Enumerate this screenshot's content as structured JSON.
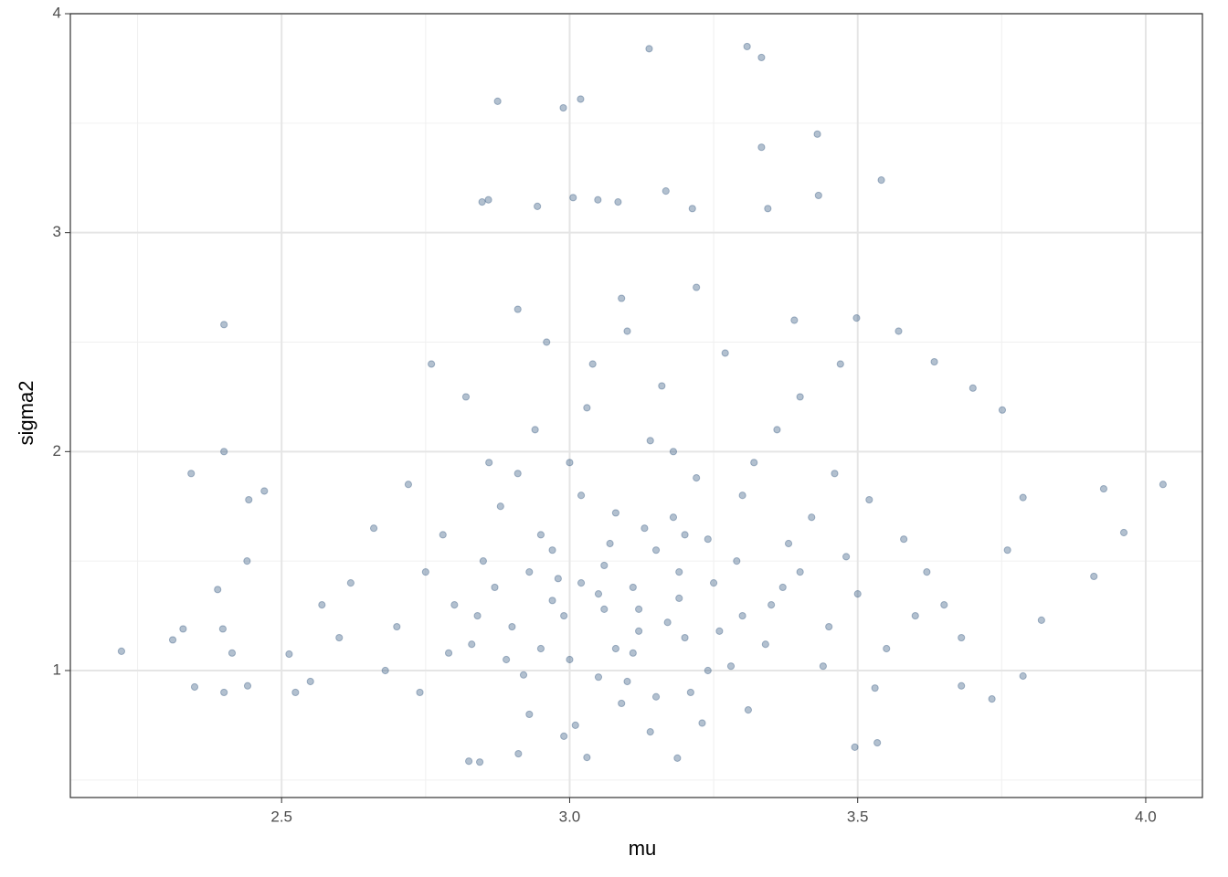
{
  "chart_data": {
    "type": "scatter",
    "x_label": "mu",
    "y_label": "sigma2",
    "color": "#00305f",
    "opacity": 0.3,
    "grid": true,
    "xlim": [
      2.1333,
      4.0984
    ],
    "ylim": [
      0.42,
      4.0
    ],
    "xticks": [
      2.5,
      {
        "value": 3,
        "label": "3.0"
      },
      3.5,
      {
        "value": 4,
        "label": "4.0"
      }
    ],
    "yticks": [
      1,
      2,
      3,
      4
    ],
    "minor_xticks": [
      2.25,
      2.75,
      3.25,
      3.75
    ],
    "minor_yticks": [
      0.5,
      1.5,
      2.5,
      3.5
    ],
    "x": [
      2.222,
      2.311,
      2.329,
      2.343,
      2.349,
      2.4,
      2.4,
      2.4,
      2.389,
      2.398,
      2.414,
      2.441,
      2.443,
      2.47,
      2.44,
      3.138,
      3.308,
      3.333,
      2.875,
      3.019,
      2.989,
      3.43,
      3.333,
      3.541,
      3.432,
      3.167,
      3.006,
      3.049,
      2.859,
      2.848,
      2.944,
      3.084,
      3.213,
      3.344,
      4.03,
      3.927,
      3.962,
      3.91,
      3.819,
      3.787,
      3.751,
      3.7,
      3.787,
      3.76,
      3.633,
      3.498,
      3.571,
      2.825,
      2.844,
      2.911,
      3.187,
      3.03,
      3.495,
      3.534,
      2.524,
      2.513,
      3.733,
      3.68,
      3.05,
      3.12,
      2.98,
      3.2,
      3.15,
      2.9,
      3.25,
      3.08,
      3.3,
      2.85,
      3.0,
      3.18,
      2.95,
      3.35,
      3.1,
      3.22,
      2.8,
      3.4,
      3.02,
      3.28,
      2.92,
      3.14,
      2.88,
      3.45,
      3.06,
      3.17,
      2.97,
      3.24,
      3.11,
      2.83,
      3.38,
      3.03,
      2.75,
      3.5,
      3.09,
      3.21,
      2.94,
      3.32,
      2.7,
      3.55,
      3.13,
      2.99,
      3.26,
      3.07,
      2.87,
      3.42,
      3.19,
      2.93,
      3.31,
      3.04,
      2.78,
      3.48,
      3.16,
      2.91,
      3.36,
      3.01,
      3.23,
      2.68,
      3.6,
      2.62,
      3.58,
      2.72,
      3.46,
      3.1,
      3.27,
      2.96,
      2.6,
      3.65,
      2.82,
      3.4,
      3.12,
      3.06,
      2.95,
      3.19,
      3.29,
      2.89,
      3.08,
      3.24,
      2.97,
      3.15,
      3.34,
      2.84,
      3.02,
      3.2,
      3.11,
      2.93,
      3.37,
      3.05,
      2.79,
      3.44,
      2.57,
      3.62,
      2.66,
      3.52,
      2.74,
      3.53,
      3.0,
      3.18,
      2.86,
      3.3,
      2.55,
      3.68,
      3.09,
      3.22,
      2.91,
      3.39,
      2.76,
      3.47,
      3.14,
      2.99
    ],
    "y": [
      1.088,
      1.14,
      1.19,
      1.9,
      0.925,
      2.58,
      2.0,
      0.9,
      1.37,
      1.19,
      1.08,
      0.93,
      1.78,
      1.82,
      1.5,
      3.84,
      3.85,
      3.8,
      3.6,
      3.61,
      3.57,
      3.45,
      3.39,
      3.24,
      3.17,
      3.19,
      3.16,
      3.15,
      3.15,
      3.14,
      3.12,
      3.14,
      3.11,
      3.11,
      1.85,
      1.83,
      1.63,
      1.43,
      1.23,
      0.975,
      2.19,
      2.29,
      1.79,
      1.55,
      2.41,
      2.61,
      2.55,
      0.586,
      0.582,
      0.62,
      0.6,
      0.603,
      0.65,
      0.67,
      0.9,
      1.075,
      0.87,
      0.93,
      1.35,
      1.28,
      1.42,
      1.15,
      1.55,
      1.2,
      1.4,
      1.1,
      1.25,
      1.5,
      1.05,
      1.7,
      1.62,
      1.3,
      0.95,
      1.88,
      1.3,
      1.45,
      1.8,
      1.02,
      0.98,
      2.05,
      1.75,
      1.2,
      1.48,
      1.22,
      1.32,
      1.6,
      1.38,
      1.12,
      1.58,
      2.2,
      1.45,
      1.35,
      0.85,
      0.9,
      2.1,
      1.95,
      1.2,
      1.1,
      1.65,
      1.25,
      1.18,
      1.58,
      1.38,
      1.7,
      1.45,
      0.8,
      0.82,
      2.4,
      1.62,
      1.52,
      2.3,
      1.9,
      2.1,
      0.75,
      0.76,
      1.0,
      1.25,
      1.4,
      1.6,
      1.85,
      1.9,
      2.55,
      2.45,
      2.5,
      1.15,
      1.3,
      2.25,
      2.25,
      1.18,
      1.28,
      1.1,
      1.33,
      1.5,
      1.05,
      1.72,
      1.0,
      1.55,
      0.88,
      1.12,
      1.25,
      1.4,
      1.62,
      1.08,
      1.45,
      1.38,
      0.97,
      1.08,
      1.02,
      1.3,
      1.45,
      1.65,
      1.78,
      0.9,
      0.92,
      1.95,
      2.0,
      1.95,
      1.8,
      0.95,
      1.15,
      2.7,
      2.75,
      2.65,
      2.6,
      2.4,
      2.4,
      0.72,
      0.7
    ]
  }
}
